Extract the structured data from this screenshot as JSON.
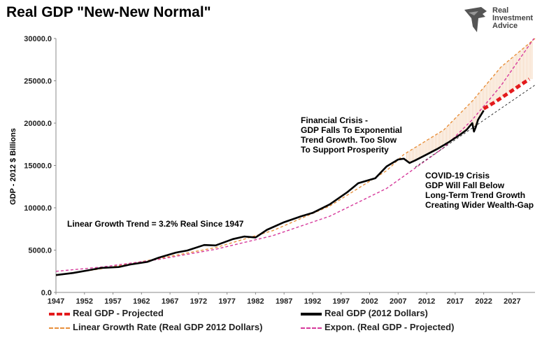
{
  "title": "Real GDP \"New-New Normal\"",
  "logo": {
    "icon": "eagle-icon",
    "text": "Real\nInvestment\nAdvice"
  },
  "chart_data": {
    "type": "line",
    "ylabel": "GDP - 2012 $ Billions",
    "xlabel": "",
    "ylim": [
      0,
      30000
    ],
    "xlim": [
      1947,
      2031
    ],
    "y_ticks": [
      "0.0",
      "5000.0",
      "10000.0",
      "15000.0",
      "20000.0",
      "25000.0",
      "30000.0"
    ],
    "x_ticks": [
      "1947",
      "1952",
      "1957",
      "1962",
      "1967",
      "1972",
      "1977",
      "1982",
      "1987",
      "1992",
      "1997",
      "2002",
      "2007",
      "2012",
      "2017",
      "2022",
      "2027"
    ],
    "grid": false,
    "series": [
      {
        "name": "Real GDP (2012 Dollars)",
        "color": "#000000",
        "x": [
          1947,
          1950,
          1953,
          1955,
          1958,
          1960,
          1963,
          1965,
          1968,
          1970,
          1973,
          1975,
          1978,
          1980,
          1982,
          1984,
          1987,
          1990,
          1992,
          1995,
          1998,
          2000,
          2003,
          2005,
          2007,
          2008,
          2009,
          2010,
          2012,
          2014,
          2016,
          2018,
          2019,
          2020,
          2020.3,
          2020.6,
          2021,
          2022
        ],
        "values": [
          2050,
          2300,
          2650,
          2900,
          3000,
          3300,
          3600,
          4100,
          4700,
          4950,
          5600,
          5550,
          6300,
          6600,
          6500,
          7400,
          8300,
          9000,
          9400,
          10400,
          11800,
          12900,
          13500,
          14900,
          15700,
          15800,
          15300,
          15600,
          16300,
          17000,
          17800,
          18700,
          19200,
          20000,
          19000,
          19500,
          20400,
          21500
        ]
      },
      {
        "name": "Real GDP - Projected",
        "color": "#e31a1c",
        "x": [
          2022,
          2024,
          2026,
          2028,
          2030
        ],
        "values": [
          21700,
          22500,
          23400,
          24300,
          25200
        ]
      },
      {
        "name": "Linear Growth Rate (Real GDP 2012 Dollars)",
        "color": "#e8903c",
        "x": [
          1947,
          1955,
          1965,
          1975,
          1985,
          1995,
          2005,
          2008,
          2015,
          2020,
          2025,
          2031
        ],
        "values": [
          2000,
          2800,
          4000,
          5300,
          7300,
          10200,
          14400,
          16300,
          19200,
          22600,
          26600,
          30000
        ]
      },
      {
        "name": "Expon. (Real GDP - Projected)",
        "color": "#d6399b",
        "x": [
          1947,
          1955,
          1965,
          1975,
          1985,
          1995,
          2005,
          2015,
          2020,
          2025,
          2030.8
        ],
        "values": [
          2500,
          3000,
          3900,
          5100,
          6700,
          9000,
          12300,
          17100,
          20400,
          24400,
          30000
        ]
      },
      {
        "name": "",
        "color": "#333333",
        "x": [
          2010,
          2031
        ],
        "values": [
          14800,
          24500
        ]
      }
    ],
    "legend": [
      {
        "label": "Real GDP - Projected",
        "color": "#e31a1c",
        "style": "dashed-thick"
      },
      {
        "label": "Real GDP (2012 Dollars)",
        "color": "#000000",
        "style": "solid-thick"
      },
      {
        "label": "Linear Growth Rate (Real GDP 2012 Dollars)",
        "color": "#e8903c",
        "style": "dashed"
      },
      {
        "label": "Expon. (Real GDP - Projected)",
        "color": "#d6399b",
        "style": "dashed"
      }
    ],
    "legend_position": "bottom",
    "annotations": [
      {
        "text": "Financial Crisis -\nGDP Falls To Exponential\nTrend Growth. Too Slow\nTo Support Prosperity"
      },
      {
        "text": "COVID-19 Crisis\nGDP Will Fall Below\nLong-Term Trend Growth\nCreating Wider Wealth-Gap"
      },
      {
        "text": "Linear Growth Trend = 3.2% Real Since 1947"
      }
    ]
  }
}
